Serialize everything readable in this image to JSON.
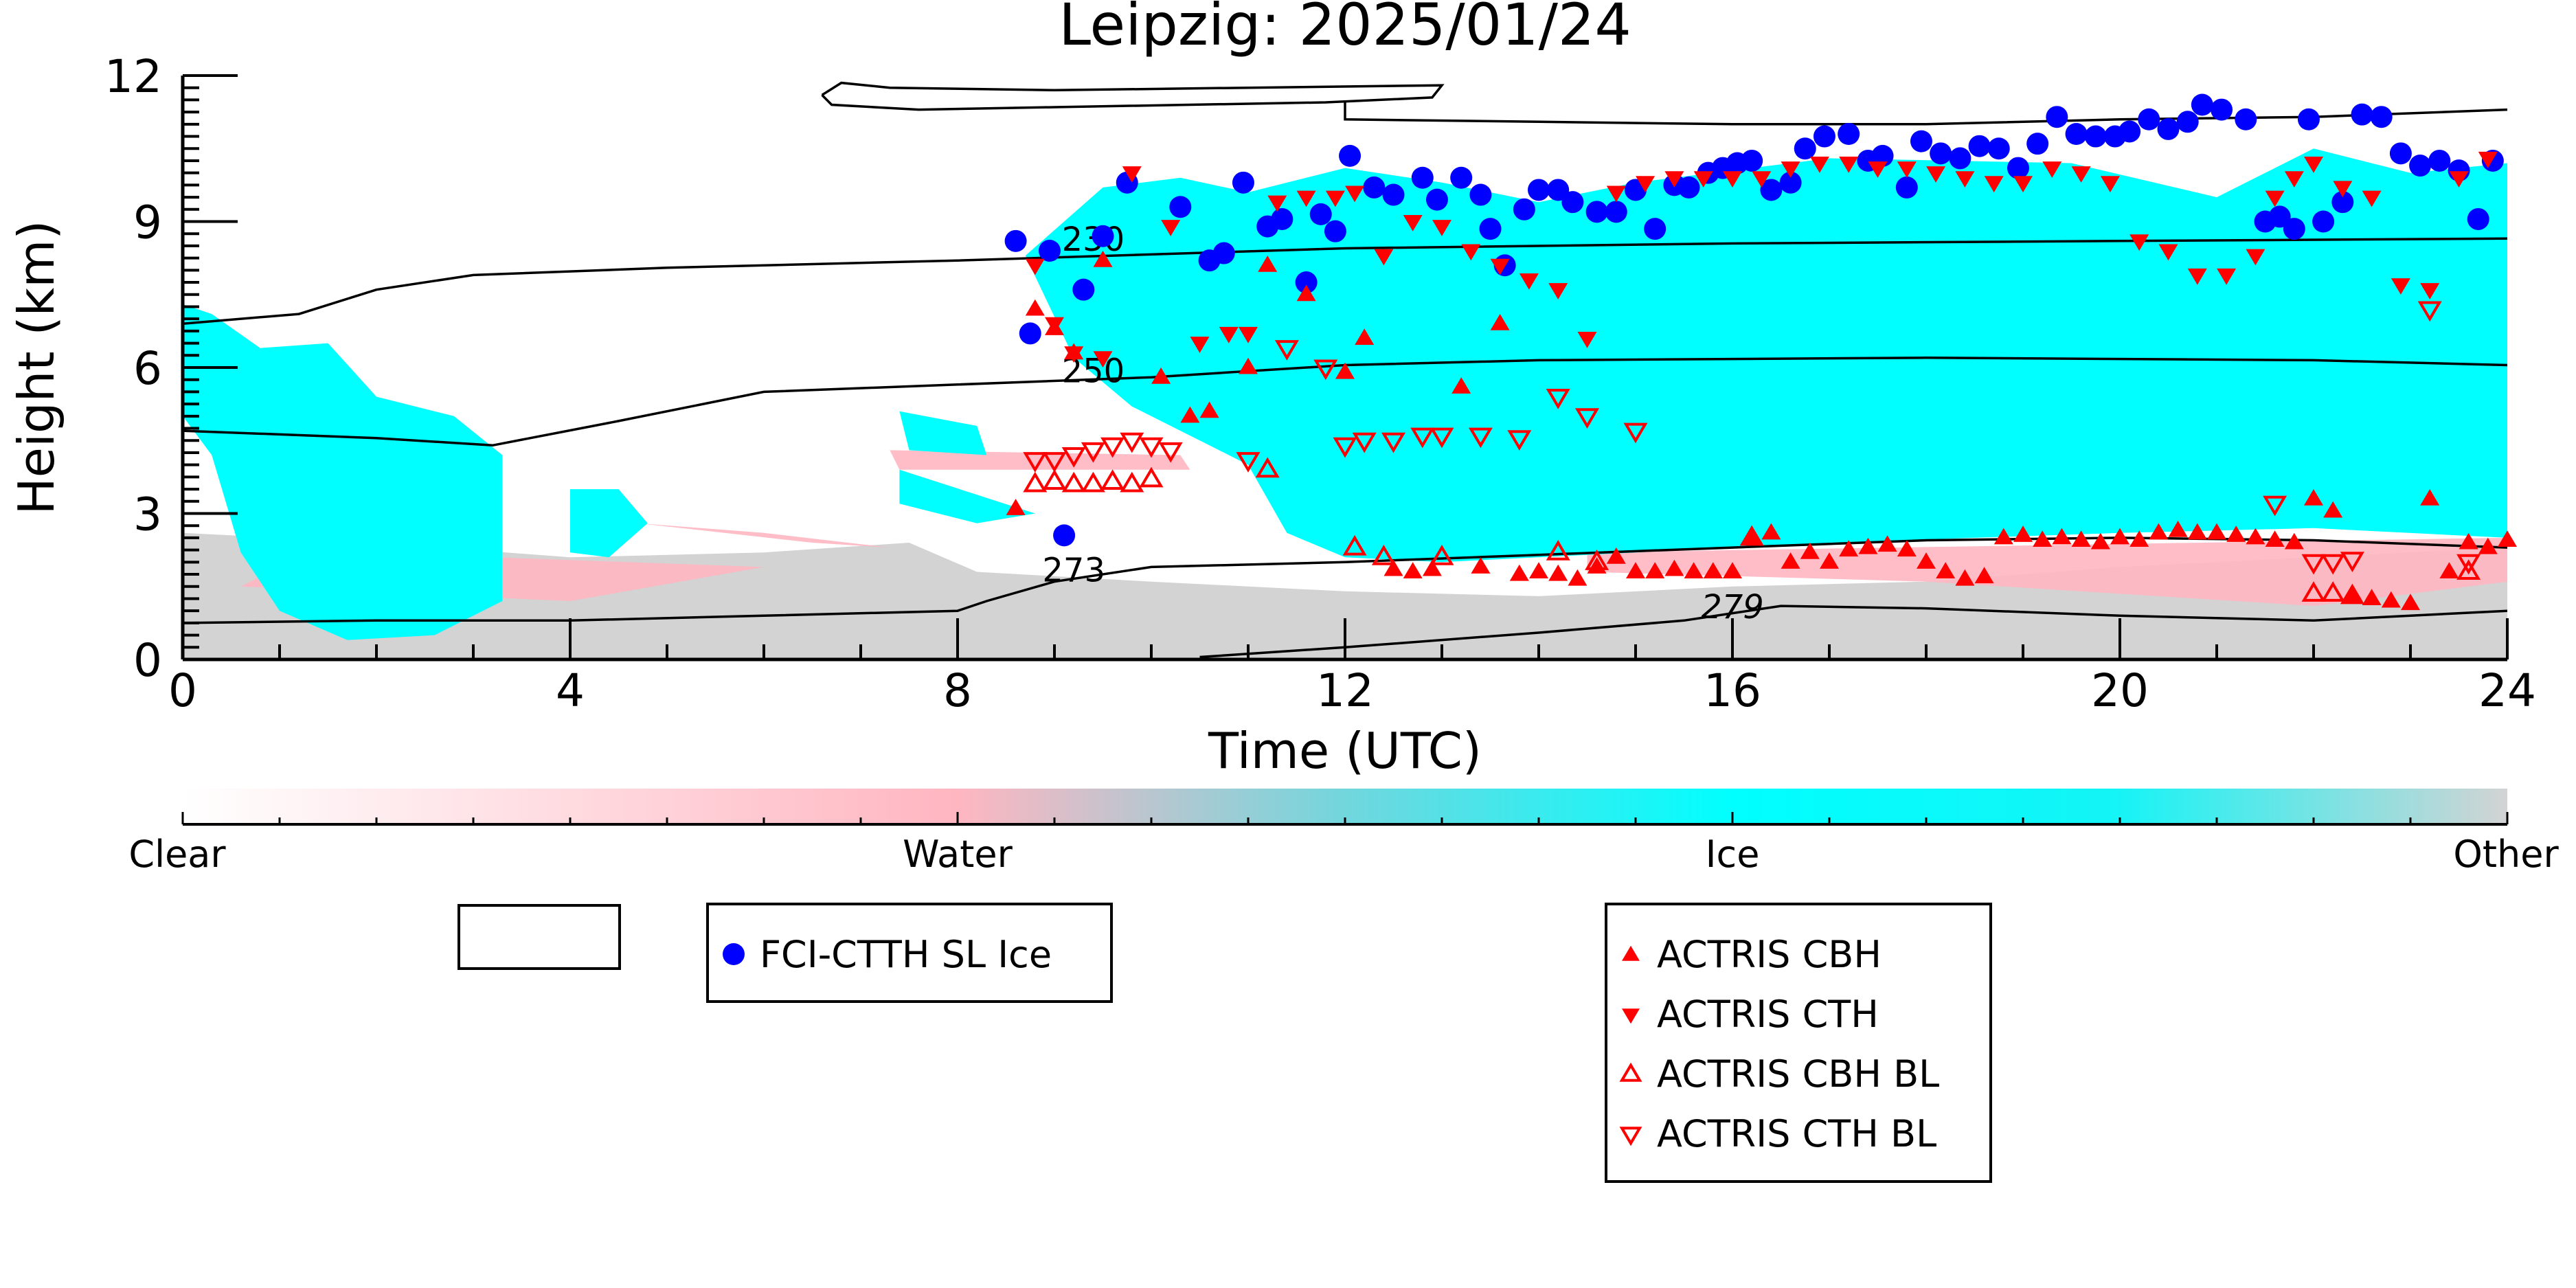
{
  "chart_data": {
    "type": "scatter",
    "title": "Leipzig: 2025/01/24",
    "xlabel": "Time (UTC)",
    "ylabel": "Height (km)",
    "xlim": [
      0,
      24
    ],
    "ylim": [
      0,
      12
    ],
    "xticks": [
      "0",
      "4",
      "8",
      "12",
      "16",
      "20",
      "24"
    ],
    "yticks": [
      "0",
      "3",
      "6",
      "9",
      "12"
    ],
    "colorbar": {
      "labels": [
        "Clear",
        "Water",
        "Ice",
        "Other"
      ],
      "colors": [
        "#ffffff",
        "#ffb6c1",
        "#00ffff",
        "#d3d3d3"
      ]
    },
    "contours": [
      {
        "label": "230",
        "label_at": [
          9.4,
          8.4
        ],
        "line": [
          [
            0,
            6.9
          ],
          [
            1.2,
            7.1
          ],
          [
            2,
            7.6
          ],
          [
            3,
            7.9
          ],
          [
            5,
            8.05
          ],
          [
            8,
            8.2
          ],
          [
            12,
            8.45
          ],
          [
            16,
            8.55
          ],
          [
            20,
            8.6
          ],
          [
            24,
            8.65
          ]
        ]
      },
      {
        "label": "250",
        "label_at": [
          9.4,
          5.7
        ],
        "line": [
          [
            0,
            4.7
          ],
          [
            2,
            4.55
          ],
          [
            3.2,
            4.4
          ],
          [
            4.5,
            4.9
          ],
          [
            6,
            5.5
          ],
          [
            8,
            5.65
          ],
          [
            10,
            5.8
          ],
          [
            12,
            6.05
          ],
          [
            14,
            6.15
          ],
          [
            18,
            6.2
          ],
          [
            22,
            6.15
          ],
          [
            24,
            6.05
          ]
        ]
      },
      {
        "label": "273",
        "label_at": [
          9.2,
          1.6
        ],
        "line": [
          [
            0,
            0.75
          ],
          [
            2,
            0.8
          ],
          [
            4,
            0.8
          ],
          [
            6,
            0.9
          ],
          [
            8,
            1.0
          ],
          [
            8.3,
            1.2
          ],
          [
            9,
            1.6
          ],
          [
            10,
            1.9
          ],
          [
            12,
            2.0
          ],
          [
            14,
            2.15
          ],
          [
            16,
            2.3
          ],
          [
            18,
            2.45
          ],
          [
            20,
            2.5
          ],
          [
            22,
            2.45
          ],
          [
            24,
            2.3
          ]
        ]
      },
      {
        "label": "279",
        "label_at": [
          16.0,
          0.85
        ],
        "line": [
          [
            10.5,
            0.05
          ],
          [
            12,
            0.25
          ],
          [
            14,
            0.55
          ],
          [
            15.5,
            0.8
          ],
          [
            16.5,
            1.1
          ],
          [
            18,
            1.05
          ],
          [
            20,
            0.9
          ],
          [
            22,
            0.8
          ],
          [
            24,
            1.0
          ]
        ]
      },
      {
        "label": "",
        "label_at": null,
        "line": [
          [
            6.6,
            11.6
          ],
          [
            6.8,
            11.85
          ],
          [
            7.3,
            11.75
          ],
          [
            9,
            11.7
          ],
          [
            11,
            11.75
          ],
          [
            13,
            11.8
          ],
          [
            12.9,
            11.55
          ],
          [
            11.8,
            11.45
          ],
          [
            9,
            11.35
          ],
          [
            7.6,
            11.3
          ],
          [
            6.7,
            11.4
          ],
          [
            6.6,
            11.6
          ]
        ]
      },
      {
        "label": "",
        "label_at": null,
        "line": [
          [
            12,
            11.45
          ],
          [
            12,
            11.1
          ],
          [
            14,
            11.05
          ],
          [
            16,
            11.0
          ],
          [
            18,
            11.0
          ],
          [
            20,
            11.1
          ],
          [
            22,
            11.15
          ],
          [
            24,
            11.3
          ]
        ]
      }
    ],
    "series": [
      {
        "name": "FCI-CTTH SL Ice",
        "marker": "circle-filled",
        "color": "#0000ff",
        "x": [
          8.6,
          8.75,
          8.95,
          9.1,
          9.3,
          9.5,
          9.75,
          10.3,
          10.6,
          10.75,
          10.95,
          11.2,
          11.35,
          11.6,
          11.75,
          11.9,
          12.05,
          12.3,
          12.5,
          12.8,
          12.95,
          13.2,
          13.4,
          13.5,
          13.65,
          13.85,
          14.0,
          14.2,
          14.35,
          14.6,
          14.8,
          15.0,
          15.2,
          15.4,
          15.55,
          15.75,
          15.9,
          16.05,
          16.2,
          16.4,
          16.6,
          16.75,
          16.95,
          17.2,
          17.4,
          17.55,
          17.8,
          17.95,
          18.15,
          18.35,
          18.55,
          18.75,
          18.95,
          19.15,
          19.35,
          19.55,
          19.75,
          19.95,
          20.1,
          20.3,
          20.5,
          20.7,
          20.85,
          21.05,
          21.3,
          21.5,
          21.65,
          21.8,
          21.95,
          22.1,
          22.3,
          22.5,
          22.7,
          22.9,
          23.1,
          23.3,
          23.5,
          23.7,
          23.85
        ],
        "y": [
          8.6,
          6.7,
          8.4,
          2.55,
          7.6,
          8.7,
          9.8,
          9.3,
          8.2,
          8.35,
          9.8,
          8.9,
          9.05,
          7.75,
          9.15,
          8.8,
          10.35,
          9.7,
          9.55,
          9.9,
          9.45,
          9.9,
          9.55,
          8.85,
          8.1,
          9.25,
          9.65,
          9.65,
          9.4,
          9.2,
          9.2,
          9.65,
          8.85,
          9.75,
          9.7,
          10.0,
          10.1,
          10.2,
          10.25,
          9.65,
          9.8,
          10.5,
          10.75,
          10.8,
          10.25,
          10.35,
          9.7,
          10.65,
          10.4,
          10.3,
          10.55,
          10.5,
          10.1,
          10.6,
          11.15,
          10.8,
          10.75,
          10.75,
          10.85,
          11.1,
          10.9,
          11.05,
          11.4,
          11.3,
          11.1,
          9.0,
          9.1,
          8.85,
          11.1,
          9.0,
          9.4,
          11.2,
          11.15,
          10.4,
          10.15,
          10.25,
          10.05,
          9.05,
          10.25
        ]
      },
      {
        "name": "ACTRIS CBH",
        "marker": "triangle-up-filled",
        "color": "#ff0000",
        "x": [
          8.6,
          8.8,
          9.0,
          9.2,
          9.5,
          10.1,
          10.4,
          10.6,
          11.0,
          11.2,
          11.6,
          12.0,
          12.2,
          12.5,
          12.7,
          12.9,
          13.2,
          13.4,
          13.6,
          13.8,
          14.0,
          14.2,
          14.4,
          14.6,
          14.8,
          15.0,
          15.2,
          15.4,
          15.6,
          15.8,
          16.0,
          16.2,
          16.4,
          16.6,
          16.8,
          17.0,
          17.2,
          17.4,
          17.6,
          17.8,
          18.0,
          18.2,
          18.4,
          18.6,
          18.8,
          19.0,
          19.2,
          19.4,
          19.6,
          19.8,
          20.0,
          20.2,
          20.4,
          20.6,
          20.8,
          21.0,
          21.2,
          21.4,
          21.6,
          21.8,
          22.0,
          22.2,
          22.4,
          22.6,
          22.8,
          23.0,
          23.2,
          23.4,
          23.6,
          23.8,
          24.0
        ],
        "y": [
          3.1,
          7.2,
          6.8,
          6.3,
          8.2,
          5.8,
          5.0,
          5.1,
          6.0,
          8.1,
          7.5,
          5.9,
          6.6,
          1.85,
          1.8,
          1.85,
          5.6,
          1.9,
          6.9,
          1.75,
          1.8,
          1.75,
          1.65,
          1.9,
          2.1,
          1.8,
          1.8,
          1.85,
          1.8,
          1.8,
          1.8,
          2.5,
          2.6,
          2.0,
          2.2,
          2.0,
          2.25,
          2.3,
          2.35,
          2.25,
          2.0,
          1.8,
          1.65,
          1.7,
          2.5,
          2.55,
          2.45,
          2.5,
          2.45,
          2.4,
          2.5,
          2.45,
          2.6,
          2.65,
          2.6,
          2.6,
          2.55,
          2.5,
          2.45,
          2.4,
          3.3,
          3.05,
          1.3,
          1.25,
          1.2,
          1.15,
          3.3,
          1.8,
          2.4,
          2.3,
          2.45
        ]
      },
      {
        "name": "ACTRIS CTH",
        "marker": "triangle-down-filled",
        "color": "#ff0000",
        "x": [
          8.8,
          9.0,
          9.2,
          9.5,
          9.8,
          10.2,
          10.5,
          10.8,
          11.0,
          11.3,
          11.6,
          11.9,
          12.1,
          12.4,
          12.7,
          13.0,
          13.3,
          13.6,
          13.9,
          14.2,
          14.5,
          14.8,
          15.1,
          15.4,
          15.7,
          16.0,
          16.3,
          16.6,
          16.9,
          17.2,
          17.5,
          17.8,
          18.1,
          18.4,
          18.7,
          19.0,
          19.3,
          19.6,
          19.9,
          20.2,
          20.5,
          20.8,
          21.1,
          21.4,
          21.6,
          21.8,
          22.0,
          22.3,
          22.6,
          22.9,
          23.2,
          23.5,
          23.8
        ],
        "y": [
          8.1,
          6.9,
          6.3,
          6.2,
          10.0,
          8.9,
          6.5,
          6.7,
          6.7,
          9.4,
          9.5,
          9.5,
          9.6,
          8.3,
          9.0,
          8.9,
          8.4,
          8.1,
          7.8,
          7.6,
          6.6,
          9.6,
          9.8,
          9.9,
          9.9,
          9.9,
          9.9,
          10.1,
          10.2,
          10.2,
          10.1,
          10.1,
          10.0,
          9.9,
          9.8,
          9.8,
          10.1,
          10.0,
          9.8,
          8.6,
          8.4,
          7.9,
          7.9,
          8.3,
          9.5,
          9.9,
          10.2,
          9.7,
          9.5,
          7.7,
          7.6,
          9.9,
          10.3
        ]
      },
      {
        "name": "ACTRIS CBH BL",
        "marker": "triangle-up-open",
        "color": "#ff0000",
        "x": [
          8.8,
          9.0,
          9.2,
          9.4,
          9.6,
          9.8,
          10.0,
          11.2,
          12.1,
          12.4,
          13.0,
          14.2,
          14.6,
          16.2,
          22.0,
          22.2,
          22.4,
          23.6
        ],
        "y": [
          3.6,
          3.65,
          3.6,
          3.6,
          3.65,
          3.6,
          3.7,
          3.9,
          2.3,
          2.1,
          2.1,
          2.2,
          2.0,
          2.5,
          1.35,
          1.35,
          1.3,
          1.8
        ]
      },
      {
        "name": "ACTRIS CTH BL",
        "marker": "triangle-down-open",
        "color": "#ff0000",
        "x": [
          8.8,
          9.0,
          9.2,
          9.4,
          9.6,
          9.8,
          10.0,
          10.2,
          11.0,
          11.4,
          11.8,
          12.0,
          12.2,
          12.5,
          12.8,
          13.0,
          13.4,
          13.8,
          14.2,
          14.5,
          15.0,
          21.6,
          22.0,
          22.2,
          22.4,
          23.2,
          23.6
        ],
        "y": [
          4.1,
          4.1,
          4.2,
          4.3,
          4.4,
          4.5,
          4.4,
          4.3,
          4.1,
          6.4,
          6.0,
          4.4,
          4.5,
          4.5,
          4.6,
          4.6,
          4.6,
          4.55,
          5.4,
          5.0,
          4.7,
          3.2,
          2.0,
          2.0,
          2.05,
          7.2,
          2.0
        ]
      }
    ]
  }
}
